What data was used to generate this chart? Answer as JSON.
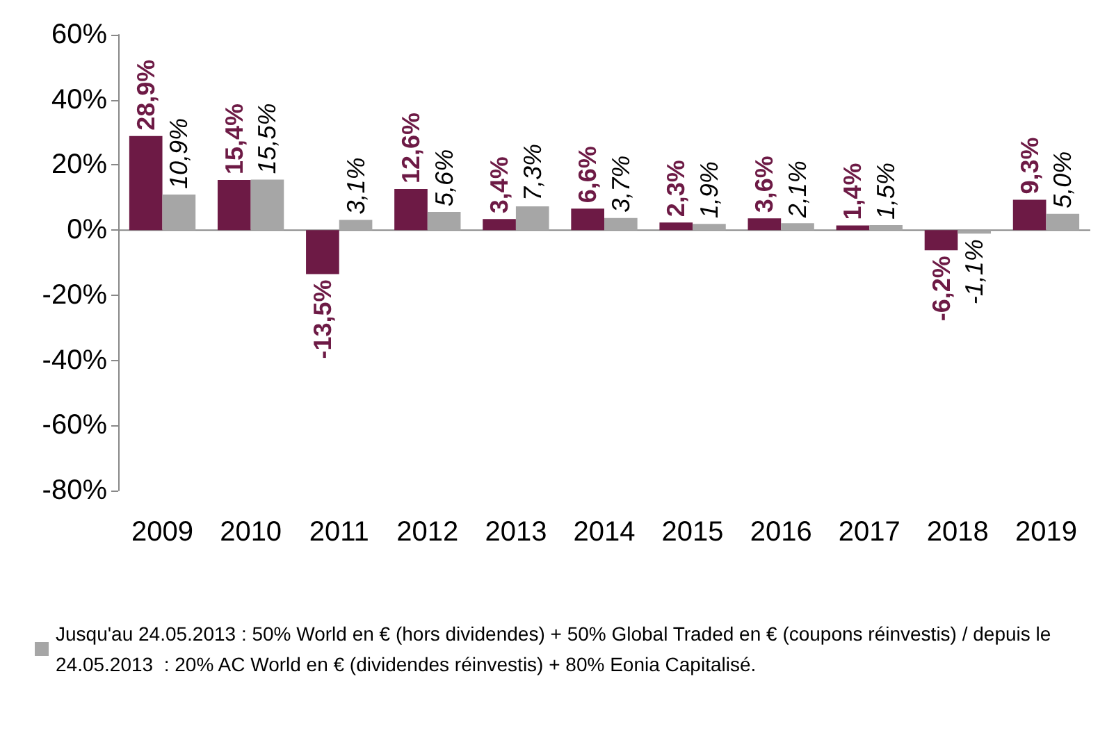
{
  "chart_data": {
    "type": "bar",
    "categories": [
      "2009",
      "2010",
      "2011",
      "2012",
      "2013",
      "2014",
      "2015",
      "2016",
      "2017",
      "2018",
      "2019"
    ],
    "series": [
      {
        "color": "#6d1a45",
        "values": [
          28.9,
          15.4,
          -13.5,
          12.6,
          3.4,
          6.6,
          2.3,
          3.6,
          1.4,
          -6.2,
          9.3
        ],
        "value_labels": [
          "28,9%",
          "15,4%",
          "-13,5%",
          "12,6%",
          "3,4%",
          "6,6%",
          "2,3%",
          "3,6%",
          "1,4%",
          "-6,2%",
          "9,3%"
        ]
      },
      {
        "name": "Jusqu'au 24.05.2013 : 50% World en € (hors dividendes) + 50% Global Traded en € (coupons réinvestis) / depuis le 24.05.2013  : 20% AC World en € (dividendes réinvestis) + 80% Eonia Capitalisé.",
        "color": "#a6a6a6",
        "values": [
          10.9,
          15.5,
          3.1,
          5.6,
          7.3,
          3.7,
          1.9,
          2.1,
          1.5,
          -1.1,
          5.0
        ],
        "value_labels": [
          "10,9%",
          "15,5%",
          "3,1%",
          "5,6%",
          "7,3%",
          "3,7%",
          "1,9%",
          "2,1%",
          "1,5%",
          "-1,1%",
          "5,0%"
        ]
      }
    ],
    "ylim": [
      -80,
      60
    ],
    "yticks": [
      {
        "value": -80,
        "label": "-80%"
      },
      {
        "value": -60,
        "label": "-60%"
      },
      {
        "value": -40,
        "label": "-40%"
      },
      {
        "value": -20,
        "label": "-20%"
      },
      {
        "value": 0,
        "label": "0%"
      },
      {
        "value": 20,
        "label": "20%"
      },
      {
        "value": 40,
        "label": "40%"
      },
      {
        "value": 60,
        "label": "60%"
      }
    ],
    "legend": "bottom"
  }
}
